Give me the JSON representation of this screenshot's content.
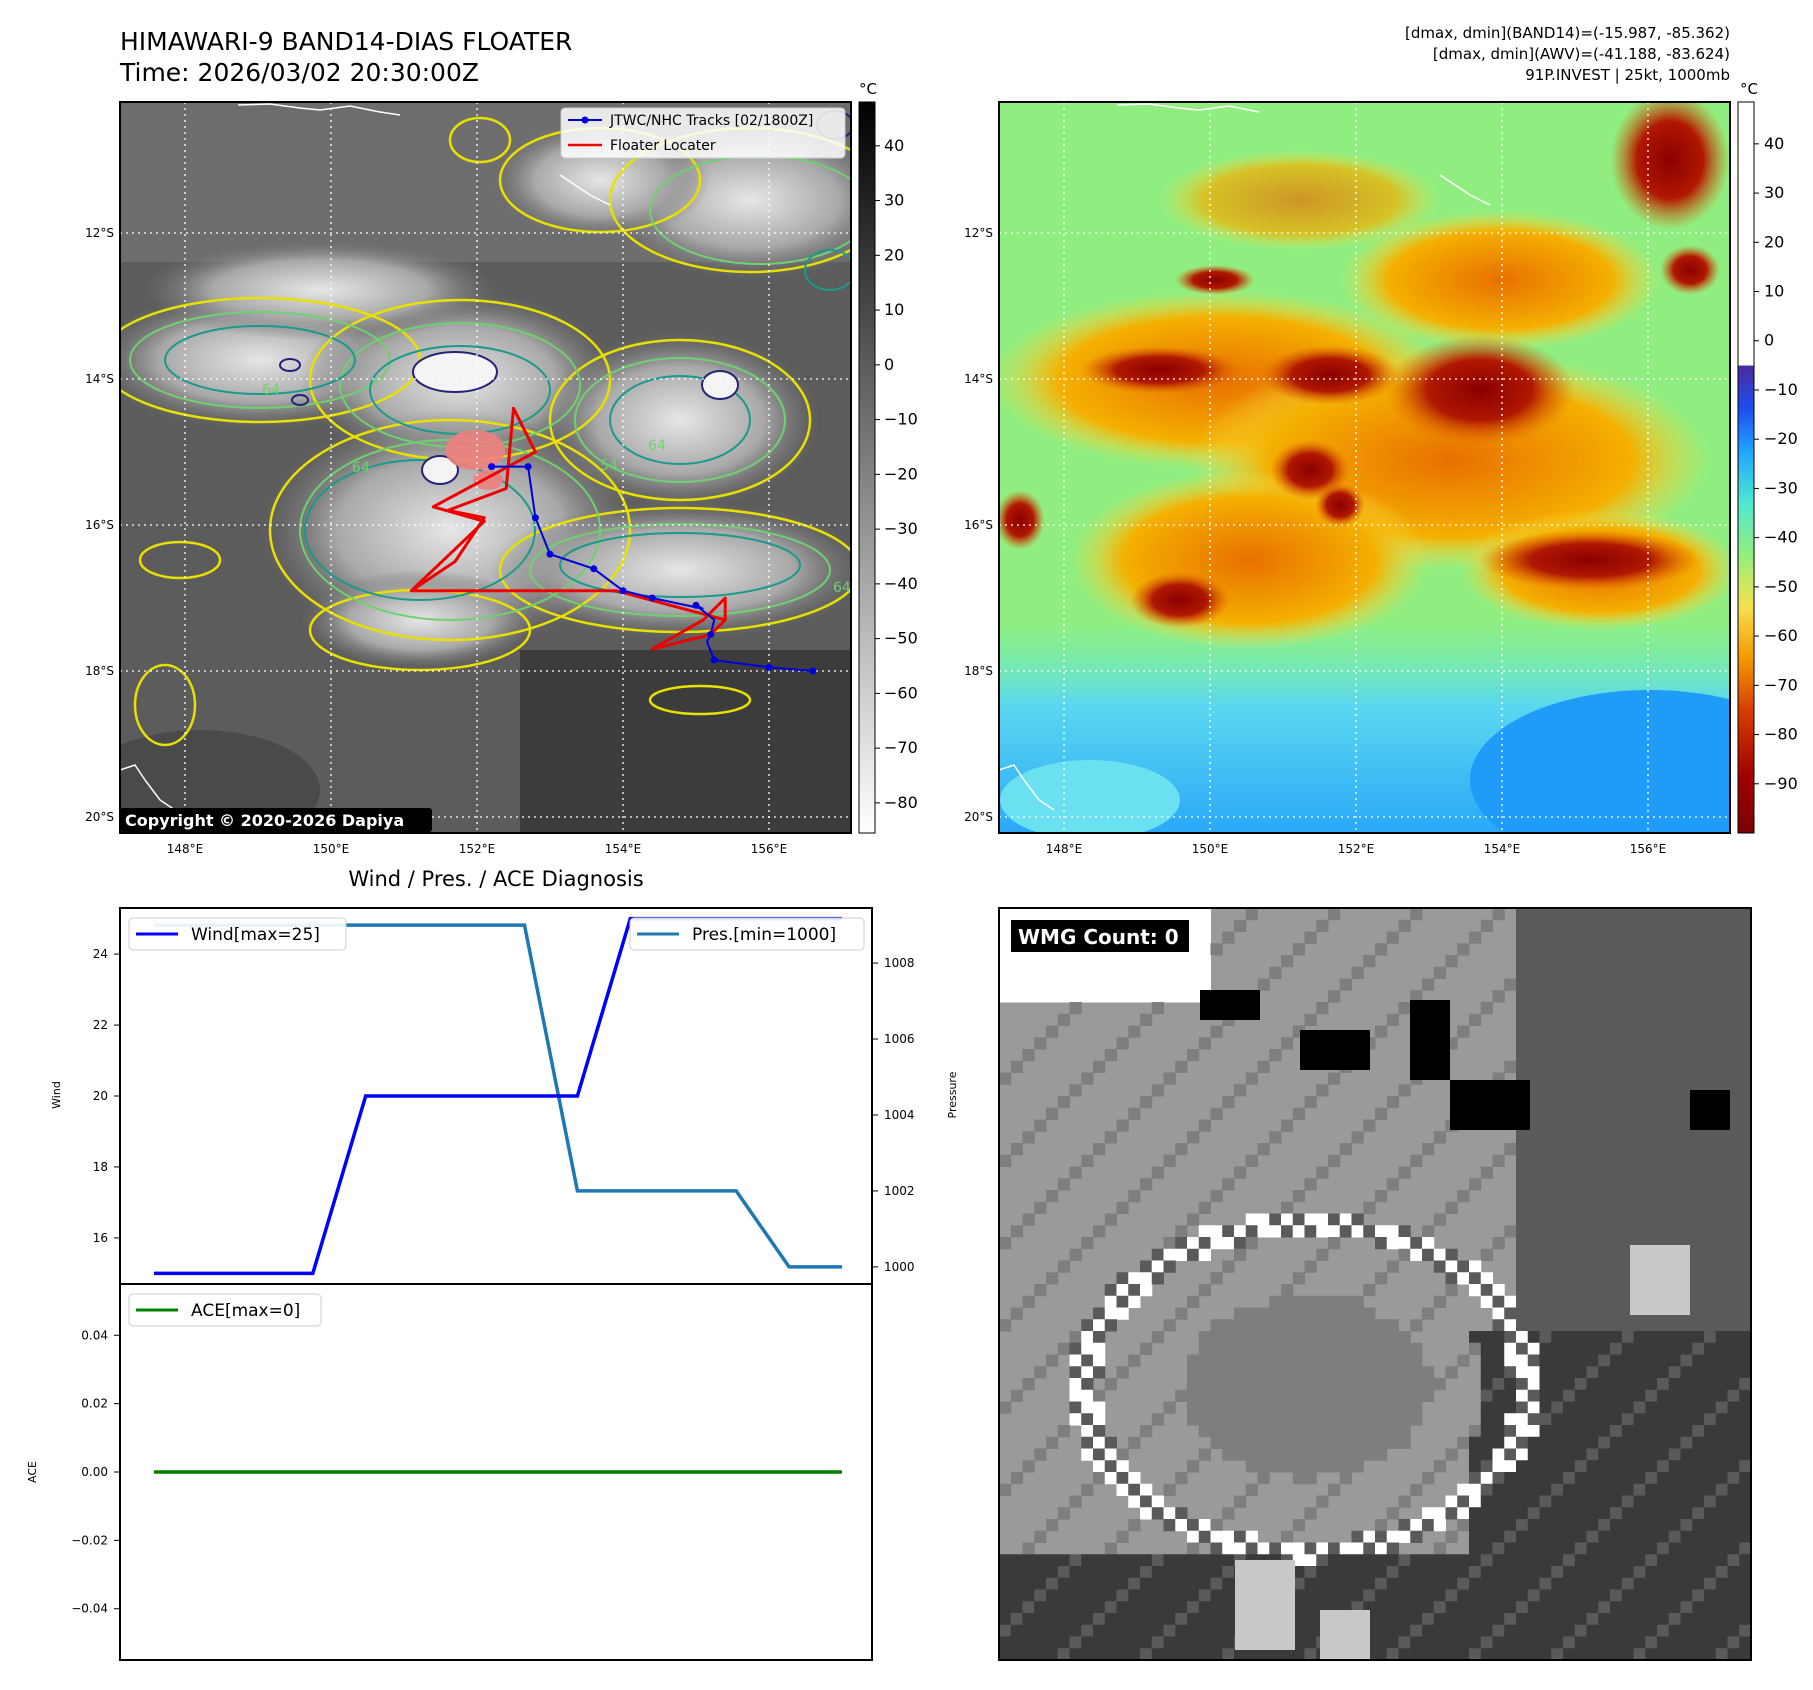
{
  "header": {
    "title": "HIMAWARI-9 BAND14-DIAS FLOATER",
    "time": "Time: 2026/03/02 20:30:00Z",
    "stats_line1": "[dmax, dmin](BAND14)=(-15.987, -85.362)",
    "stats_line2": "[dmax, dmin](AWV)=(-41.188, -83.624)",
    "stats_line3": "91P.INVEST | 25kt, 1000mb"
  },
  "map_axes": {
    "x_ticks": [
      "148°E",
      "150°E",
      "152°E",
      "154°E",
      "156°E"
    ],
    "y_ticks": [
      "12°S",
      "14°S",
      "16°S",
      "18°S",
      "20°S"
    ]
  },
  "left_map": {
    "legend_tracks": "JTWC/NHC Tracks [02/1800Z]",
    "legend_locater": "Floater Locater",
    "copyright": "Copyright © 2020-2026 Dapiya",
    "contour_labels": [
      "64",
      "64",
      "54",
      "64",
      "64"
    ]
  },
  "colorbar_left": {
    "unit": "°C",
    "ticks": [
      "40",
      "30",
      "20",
      "10",
      "0",
      "−10",
      "−20",
      "−30",
      "−40",
      "−50",
      "−60",
      "−70",
      "−80"
    ]
  },
  "colorbar_right": {
    "unit": "°C",
    "ticks": [
      "40",
      "30",
      "20",
      "10",
      "0",
      "−10",
      "−20",
      "−30",
      "−40",
      "−50",
      "−60",
      "−70",
      "−80",
      "−90"
    ]
  },
  "diagnosis": {
    "title": "Wind / Pres. / ACE Diagnosis",
    "wind_ylabel": "Wind",
    "pressure_ylabel": "Pressure",
    "ace_ylabel": "ACE",
    "wind_legend": "Wind[max=25]",
    "pres_legend": "Pres.[min=1000]",
    "ace_legend": "ACE[max=0]",
    "wind_ticks": [
      "16",
      "18",
      "20",
      "22",
      "24"
    ],
    "pressure_ticks": [
      "1000",
      "1002",
      "1004",
      "1006",
      "1008"
    ],
    "ace_ticks": [
      "0.04",
      "0.02",
      "0.00",
      "−0.02",
      "−0.04"
    ]
  },
  "wmg": {
    "label": "WMG Count: 0"
  },
  "colors": {
    "wind": "#0000ff",
    "pressure": "#1f77b4",
    "ace": "#008000",
    "track": "#0000dd",
    "locater": "#ee0000"
  },
  "chart_data": [
    {
      "type": "line",
      "name": "wind-pressure",
      "x": [
        0,
        1,
        2,
        3,
        4,
        5,
        6,
        7,
        8,
        9,
        10,
        11,
        12,
        13
      ],
      "series": [
        {
          "name": "Wind[max=25]",
          "axis": "left",
          "values": [
            15,
            15,
            15,
            15,
            20,
            20,
            20,
            20,
            20,
            25,
            25,
            25,
            25,
            25
          ]
        },
        {
          "name": "Pres.[min=1000]",
          "axis": "right",
          "values": [
            1009,
            1009,
            1009,
            1009,
            1009,
            1009,
            1009,
            1009,
            1002,
            1002,
            1002,
            1002,
            1000,
            1000
          ]
        }
      ],
      "ylim_left": [
        14.7,
        25.3
      ],
      "ylim_right": [
        999.55,
        1009.45
      ]
    },
    {
      "type": "line",
      "name": "ace",
      "x": [
        0,
        1,
        2,
        3,
        4,
        5,
        6,
        7,
        8,
        9,
        10,
        11,
        12,
        13
      ],
      "series": [
        {
          "name": "ACE[max=0]",
          "values": [
            0,
            0,
            0,
            0,
            0,
            0,
            0,
            0,
            0,
            0,
            0,
            0,
            0,
            0
          ]
        }
      ],
      "ylim": [
        -0.055,
        0.055
      ]
    },
    {
      "type": "line",
      "name": "jtwc-track",
      "x_unit": "°E",
      "y_unit": "°S",
      "points": [
        [
          156.6,
          18.0
        ],
        [
          156.0,
          17.95
        ],
        [
          155.25,
          17.85
        ],
        [
          155.15,
          17.6
        ],
        [
          155.2,
          17.5
        ],
        [
          155.25,
          17.3
        ],
        [
          155.0,
          17.1
        ],
        [
          155.1,
          17.15
        ],
        [
          154.4,
          17.0
        ],
        [
          154.0,
          16.9
        ],
        [
          153.6,
          16.6
        ],
        [
          153.0,
          16.4
        ],
        [
          152.8,
          15.9
        ],
        [
          152.7,
          15.2
        ],
        [
          152.2,
          15.2
        ]
      ],
      "markers": [
        [
          156.6,
          18.0
        ],
        [
          156.0,
          17.95
        ],
        [
          155.25,
          17.85
        ],
        [
          155.2,
          17.5
        ],
        [
          155.0,
          17.1
        ],
        [
          154.4,
          17.0
        ],
        [
          154.0,
          16.9
        ],
        [
          153.6,
          16.6
        ],
        [
          153.0,
          16.4
        ],
        [
          152.8,
          15.9
        ],
        [
          152.7,
          15.2
        ],
        [
          152.2,
          15.2
        ]
      ]
    },
    {
      "type": "line",
      "name": "floater-locater",
      "x_unit": "°E",
      "y_unit": "°S",
      "points": [
        [
          155.4,
          17.3
        ],
        [
          155.4,
          17.0
        ],
        [
          155.1,
          17.3
        ],
        [
          154.4,
          17.7
        ],
        [
          155.2,
          17.5
        ],
        [
          155.4,
          17.3
        ],
        [
          153.9,
          16.9
        ],
        [
          151.1,
          16.9
        ],
        [
          151.7,
          16.5
        ],
        [
          152.1,
          15.9
        ],
        [
          151.6,
          15.8
        ],
        [
          152.4,
          15.5
        ],
        [
          152.5,
          14.4
        ],
        [
          152.8,
          15.0
        ],
        [
          151.4,
          15.75
        ],
        [
          152.1,
          15.95
        ],
        [
          151.1,
          16.9
        ]
      ]
    }
  ]
}
